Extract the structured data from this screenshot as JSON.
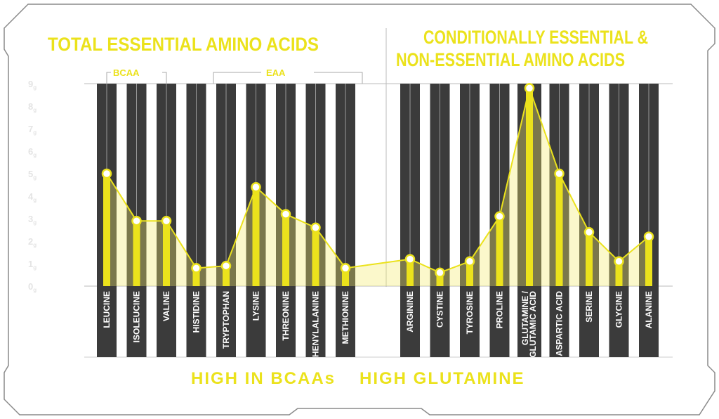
{
  "colors": {
    "bar_dark": "#3b3b3b",
    "accent_yellow": "#ebe21c",
    "area_fill": "#f3ea6a",
    "marker": "#ffffff"
  },
  "titles": {
    "left": "TOTAL ESSENTIAL AMINO ACIDS",
    "right_line1": "CONDITIONALLY ESSENTIAL &",
    "right_line2": "NON-ESSENTIAL AMINO ACIDS"
  },
  "groups": {
    "bcaa": "BCAA",
    "eaa": "EAA"
  },
  "footer": {
    "left": "HIGH IN BCAAs",
    "right": "HIGH GLUTAMINE"
  },
  "chart_data": {
    "type": "bar",
    "ylabel": "",
    "yunit": "g",
    "ylim": [
      0,
      9
    ],
    "yticks": [
      "0",
      "1",
      "2",
      "3",
      "4",
      "5",
      "6",
      "7",
      "8",
      "9"
    ],
    "grid": false,
    "categories": [
      "LEUCINE",
      "ISOLEUCINE",
      "VALINE",
      "HISTIDINE",
      "TRYPTOPHAN",
      "LYSINE",
      "THREONINE",
      "PHENYLALANINE",
      "METHIONINE",
      "ARGININE",
      "CYSTINE",
      "TYROSINE",
      "PROLINE",
      "GLUTAMINE /",
      "ASPARTIC ACID",
      "SERINE",
      "GLYCINE",
      "ALANINE"
    ],
    "category_sublabels": {
      "13": "GLUTAMIC ACID"
    },
    "values": [
      5.0,
      2.9,
      2.9,
      0.8,
      0.9,
      4.4,
      3.2,
      2.6,
      0.8,
      1.2,
      0.6,
      1.1,
      3.1,
      8.8,
      5.0,
      2.4,
      1.1,
      2.2
    ]
  }
}
